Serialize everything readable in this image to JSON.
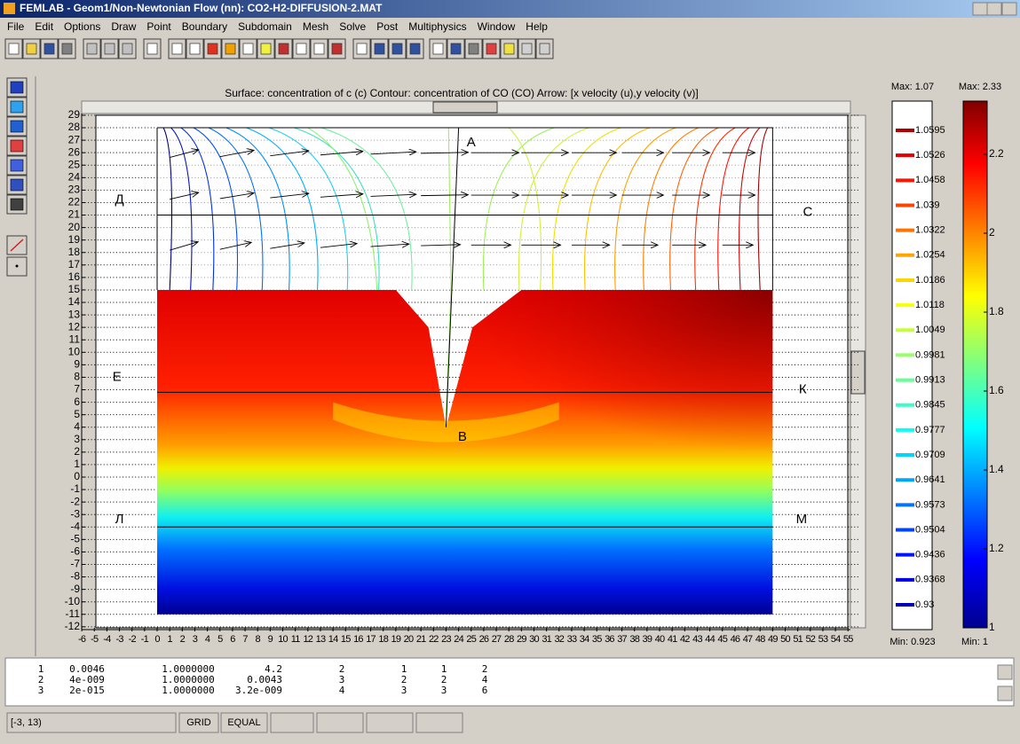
{
  "window": {
    "title": "FEMLAB - Geom1/Non-Newtonian Flow (nn): CO2-H2-DIFFUSION-2.MAT"
  },
  "menu": [
    "File",
    "Edit",
    "Options",
    "Draw",
    "Point",
    "Boundary",
    "Subdomain",
    "Mesh",
    "Solve",
    "Post",
    "Multiphysics",
    "Window",
    "Help"
  ],
  "plot": {
    "title": "Surface: concentration of c (c)  Contour: concentration of CO   (CO)   Arrow: [x velocity (u),y velocity (v)]",
    "yticks": [
      29,
      28,
      27,
      26,
      25,
      24,
      23,
      22,
      21,
      20,
      19,
      18,
      17,
      16,
      15,
      14,
      13,
      12,
      11,
      10,
      9,
      8,
      7,
      6,
      5,
      4,
      3,
      2,
      1,
      0,
      -1,
      -2,
      -3,
      -4,
      -5,
      -6,
      -7,
      -8,
      -9,
      -10,
      -11,
      -12
    ],
    "xticks": [
      -6,
      -5,
      -4,
      -3,
      -2,
      -1,
      0,
      1,
      2,
      3,
      4,
      5,
      6,
      7,
      8,
      9,
      10,
      11,
      12,
      13,
      14,
      15,
      16,
      17,
      18,
      19,
      20,
      21,
      22,
      23,
      24,
      25,
      26,
      27,
      28,
      29,
      30,
      31,
      32,
      33,
      34,
      35,
      36,
      37,
      38,
      39,
      40,
      41,
      42,
      43,
      44,
      45,
      46,
      47,
      48,
      49,
      50,
      51,
      52,
      53,
      54,
      55
    ],
    "labels": [
      "А",
      "Д",
      "С",
      "Е",
      "К",
      "В",
      "Л",
      "М"
    ]
  },
  "contour_legend": {
    "max": "Max: 1.07",
    "min": "Min: 0.923",
    "levels": [
      1.0595,
      1.0526,
      1.0458,
      1.039,
      1.0322,
      1.0254,
      1.0186,
      1.0118,
      1.0049,
      0.9981,
      0.9913,
      0.9845,
      0.9777,
      0.9709,
      0.9641,
      0.9573,
      0.9504,
      0.9436,
      0.9368,
      0.93
    ]
  },
  "surface_legend": {
    "max": "Max: 2.33",
    "min": "Min: 1",
    "ticks": [
      2.2,
      2,
      1.8,
      1.6,
      1.4,
      1.2,
      1
    ]
  },
  "log": {
    "rows": [
      [
        "1",
        "0.0046",
        "1.0000000",
        "4.2",
        "2",
        "1",
        "1",
        "2"
      ],
      [
        "2",
        "4e-009",
        "1.0000000",
        "0.0043",
        "3",
        "2",
        "2",
        "4"
      ],
      [
        "3",
        "2e-015",
        "1.0000000",
        "3.2e-009",
        "4",
        "3",
        "3",
        "6"
      ]
    ]
  },
  "status": {
    "coords": "[-3, 13)",
    "grid": "GRID",
    "equal": "EQUAL"
  }
}
